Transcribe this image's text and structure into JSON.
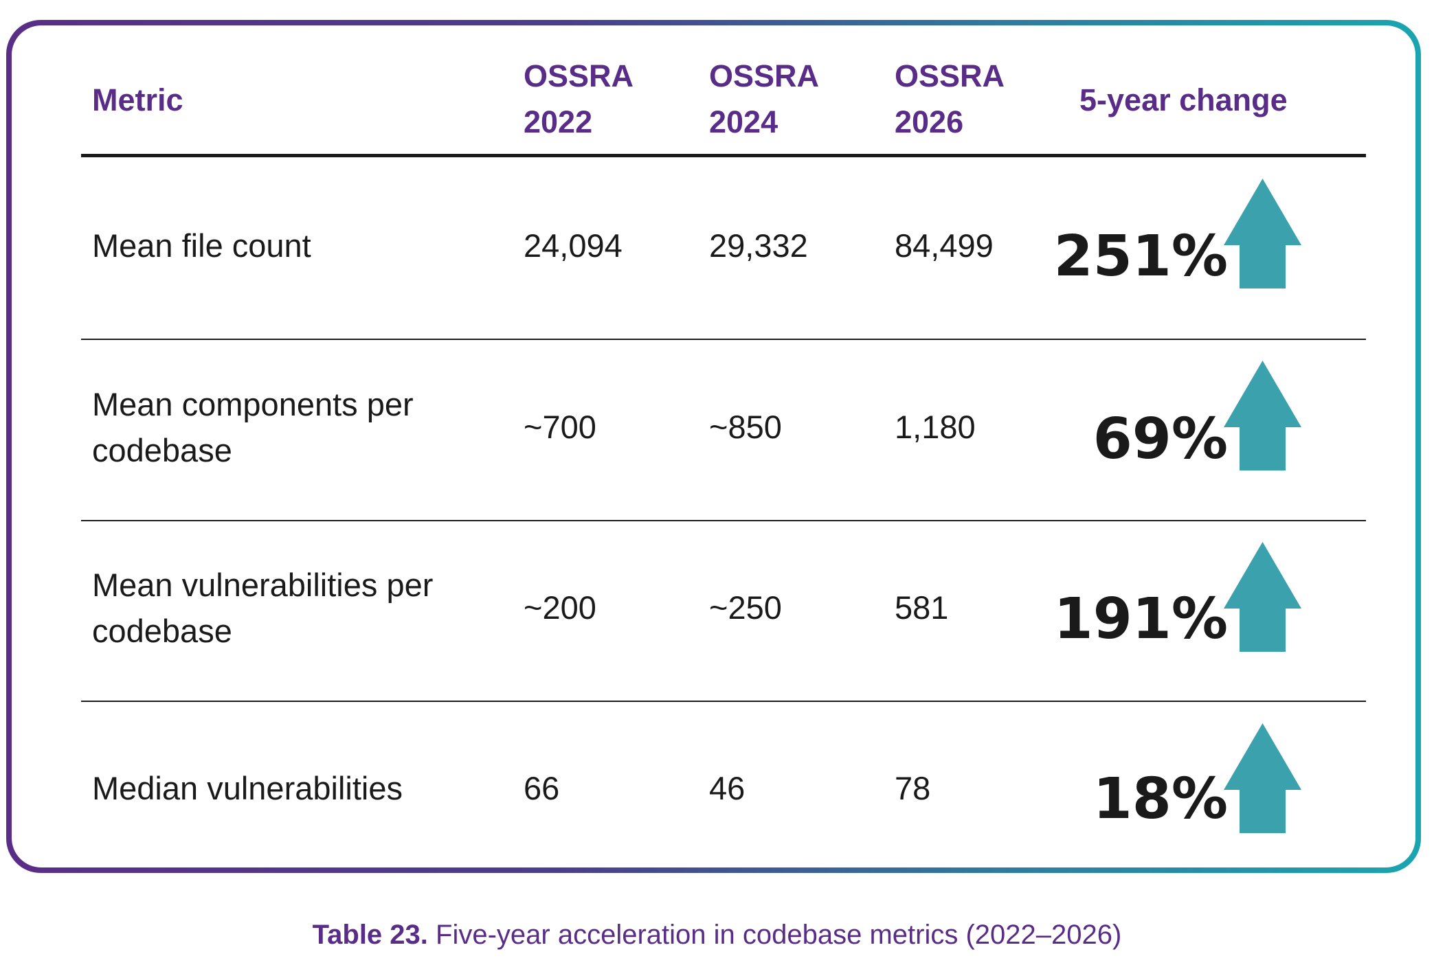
{
  "table": {
    "headers": {
      "metric": "Metric",
      "col1": "OSSRA\n2022",
      "col2": "OSSRA\n2024",
      "col3": "OSSRA\n2026",
      "change": "5-year change"
    },
    "rows": [
      {
        "metric": "Mean file count",
        "v2022": "24,094",
        "v2024": "29,332",
        "v2026": "84,499",
        "change": "251%",
        "trend": "up-arrow-icon"
      },
      {
        "metric": "Mean components per\ncodebase",
        "v2022": "~700",
        "v2024": "~850",
        "v2026": "1,180",
        "change": "69%",
        "trend": "up-arrow-icon"
      },
      {
        "metric": "Mean vulnerabilities per\ncodebase",
        "v2022": "~200",
        "v2024": "~250",
        "v2026": "581",
        "change": "191%",
        "trend": "up-arrow-icon"
      },
      {
        "metric": "Median vulnerabilities",
        "v2022": "66",
        "v2024": "46",
        "v2026": "78",
        "change": "18%",
        "trend": "up-arrow-icon"
      }
    ]
  },
  "caption": {
    "label": "Table 23.",
    "text": " Five-year acceleration in codebase metrics (2022–2026)"
  },
  "colors": {
    "header_purple": "#592d87",
    "arrow_teal": "#3aa1ad",
    "border_start": "#5a2d86",
    "border_end": "#1aa5b0"
  }
}
